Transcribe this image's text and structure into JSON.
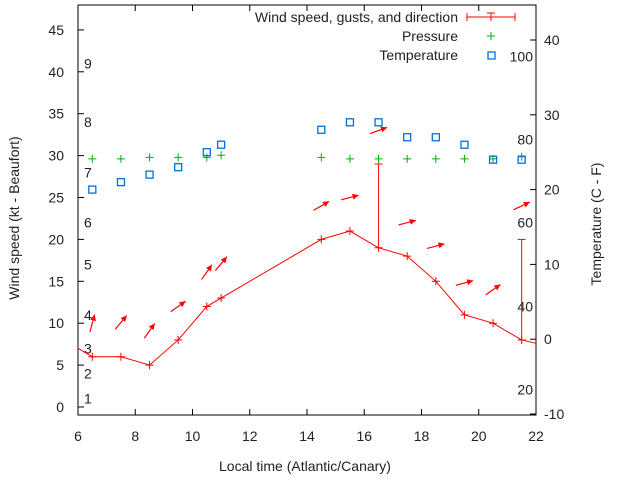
{
  "chart_data": {
    "type": "line",
    "xlabel": "Local time (Atlantic/Canary)",
    "ylabel": "Wind speed (kt - Beaufort)",
    "y2label": "Temperature (C - F)",
    "xlim": [
      6,
      22
    ],
    "ylim": [
      0,
      45
    ],
    "y2lim": [
      -10,
      44
    ],
    "xticks": [
      6,
      8,
      10,
      12,
      14,
      16,
      18,
      20,
      22
    ],
    "yticks": [
      0,
      5,
      10,
      15,
      20,
      25,
      30,
      35,
      40,
      45
    ],
    "y2ticks": [
      -10,
      0,
      10,
      20,
      30,
      40
    ],
    "beaufort_labels": [
      {
        "label": "1",
        "kt": 1
      },
      {
        "label": "2",
        "kt": 4
      },
      {
        "label": "3",
        "kt": 7
      },
      {
        "label": "4",
        "kt": 11
      },
      {
        "label": "5",
        "kt": 17
      },
      {
        "label": "6",
        "kt": 22
      },
      {
        "label": "7",
        "kt": 28
      },
      {
        "label": "8",
        "kt": 34
      },
      {
        "label": "9",
        "kt": 41
      }
    ],
    "fahrenheit_labels": [
      {
        "label": "20",
        "c": -6.7
      },
      {
        "label": "40",
        "c": 4.4
      },
      {
        "label": "60",
        "c": 15.6
      },
      {
        "label": "80",
        "c": 26.7
      },
      {
        "label": "100",
        "c": 37.8
      }
    ],
    "legend": [
      "Wind speed, gusts, and direction",
      "Pressure",
      "Temperature"
    ],
    "legend_position": "top-right",
    "x": [
      6.5,
      7.5,
      8.5,
      9.5,
      10.5,
      11,
      14.5,
      15.5,
      16.5,
      17.5,
      18.5,
      19.5,
      20.5,
      21.5
    ],
    "series": [
      {
        "name": "Wind speed",
        "axis": "y",
        "color": "#ff0000",
        "values": [
          6,
          6,
          5,
          8,
          12,
          13,
          20,
          21,
          19,
          18,
          15,
          11,
          10,
          8
        ],
        "line_start": [
          6,
          7
        ],
        "line_end": [
          22,
          7.6
        ]
      },
      {
        "name": "Gusts",
        "axis": "y",
        "color": "#ff0000",
        "points": [
          {
            "x": 16.5,
            "from": 19,
            "to": 29
          },
          {
            "x": 21.5,
            "from": 8,
            "to": 20
          }
        ]
      },
      {
        "name": "Direction",
        "axis": "y",
        "color": "#ff0000",
        "arrow_y": [
          10,
          10.1,
          9.1,
          12,
          16.1,
          17.1,
          24,
          25,
          33,
          22,
          19.2,
          14.8,
          14,
          24
        ],
        "arrow_angle_deg": [
          75,
          50,
          55,
          35,
          55,
          50,
          30,
          15,
          20,
          15,
          15,
          15,
          35,
          25
        ]
      },
      {
        "name": "Pressure",
        "axis": "y2",
        "color": "#00b000",
        "values": [
          24.1,
          24.1,
          24.3,
          24.3,
          24.3,
          24.6,
          24.3,
          24.1,
          24.1,
          24.1,
          24.1,
          24.1,
          24.1,
          24.4
        ]
      },
      {
        "name": "Temperature",
        "axis": "y2",
        "color": "#0070e0",
        "values": [
          20,
          21,
          22,
          23,
          25,
          26,
          28,
          29,
          29,
          27,
          27,
          26,
          24,
          24
        ]
      }
    ]
  }
}
